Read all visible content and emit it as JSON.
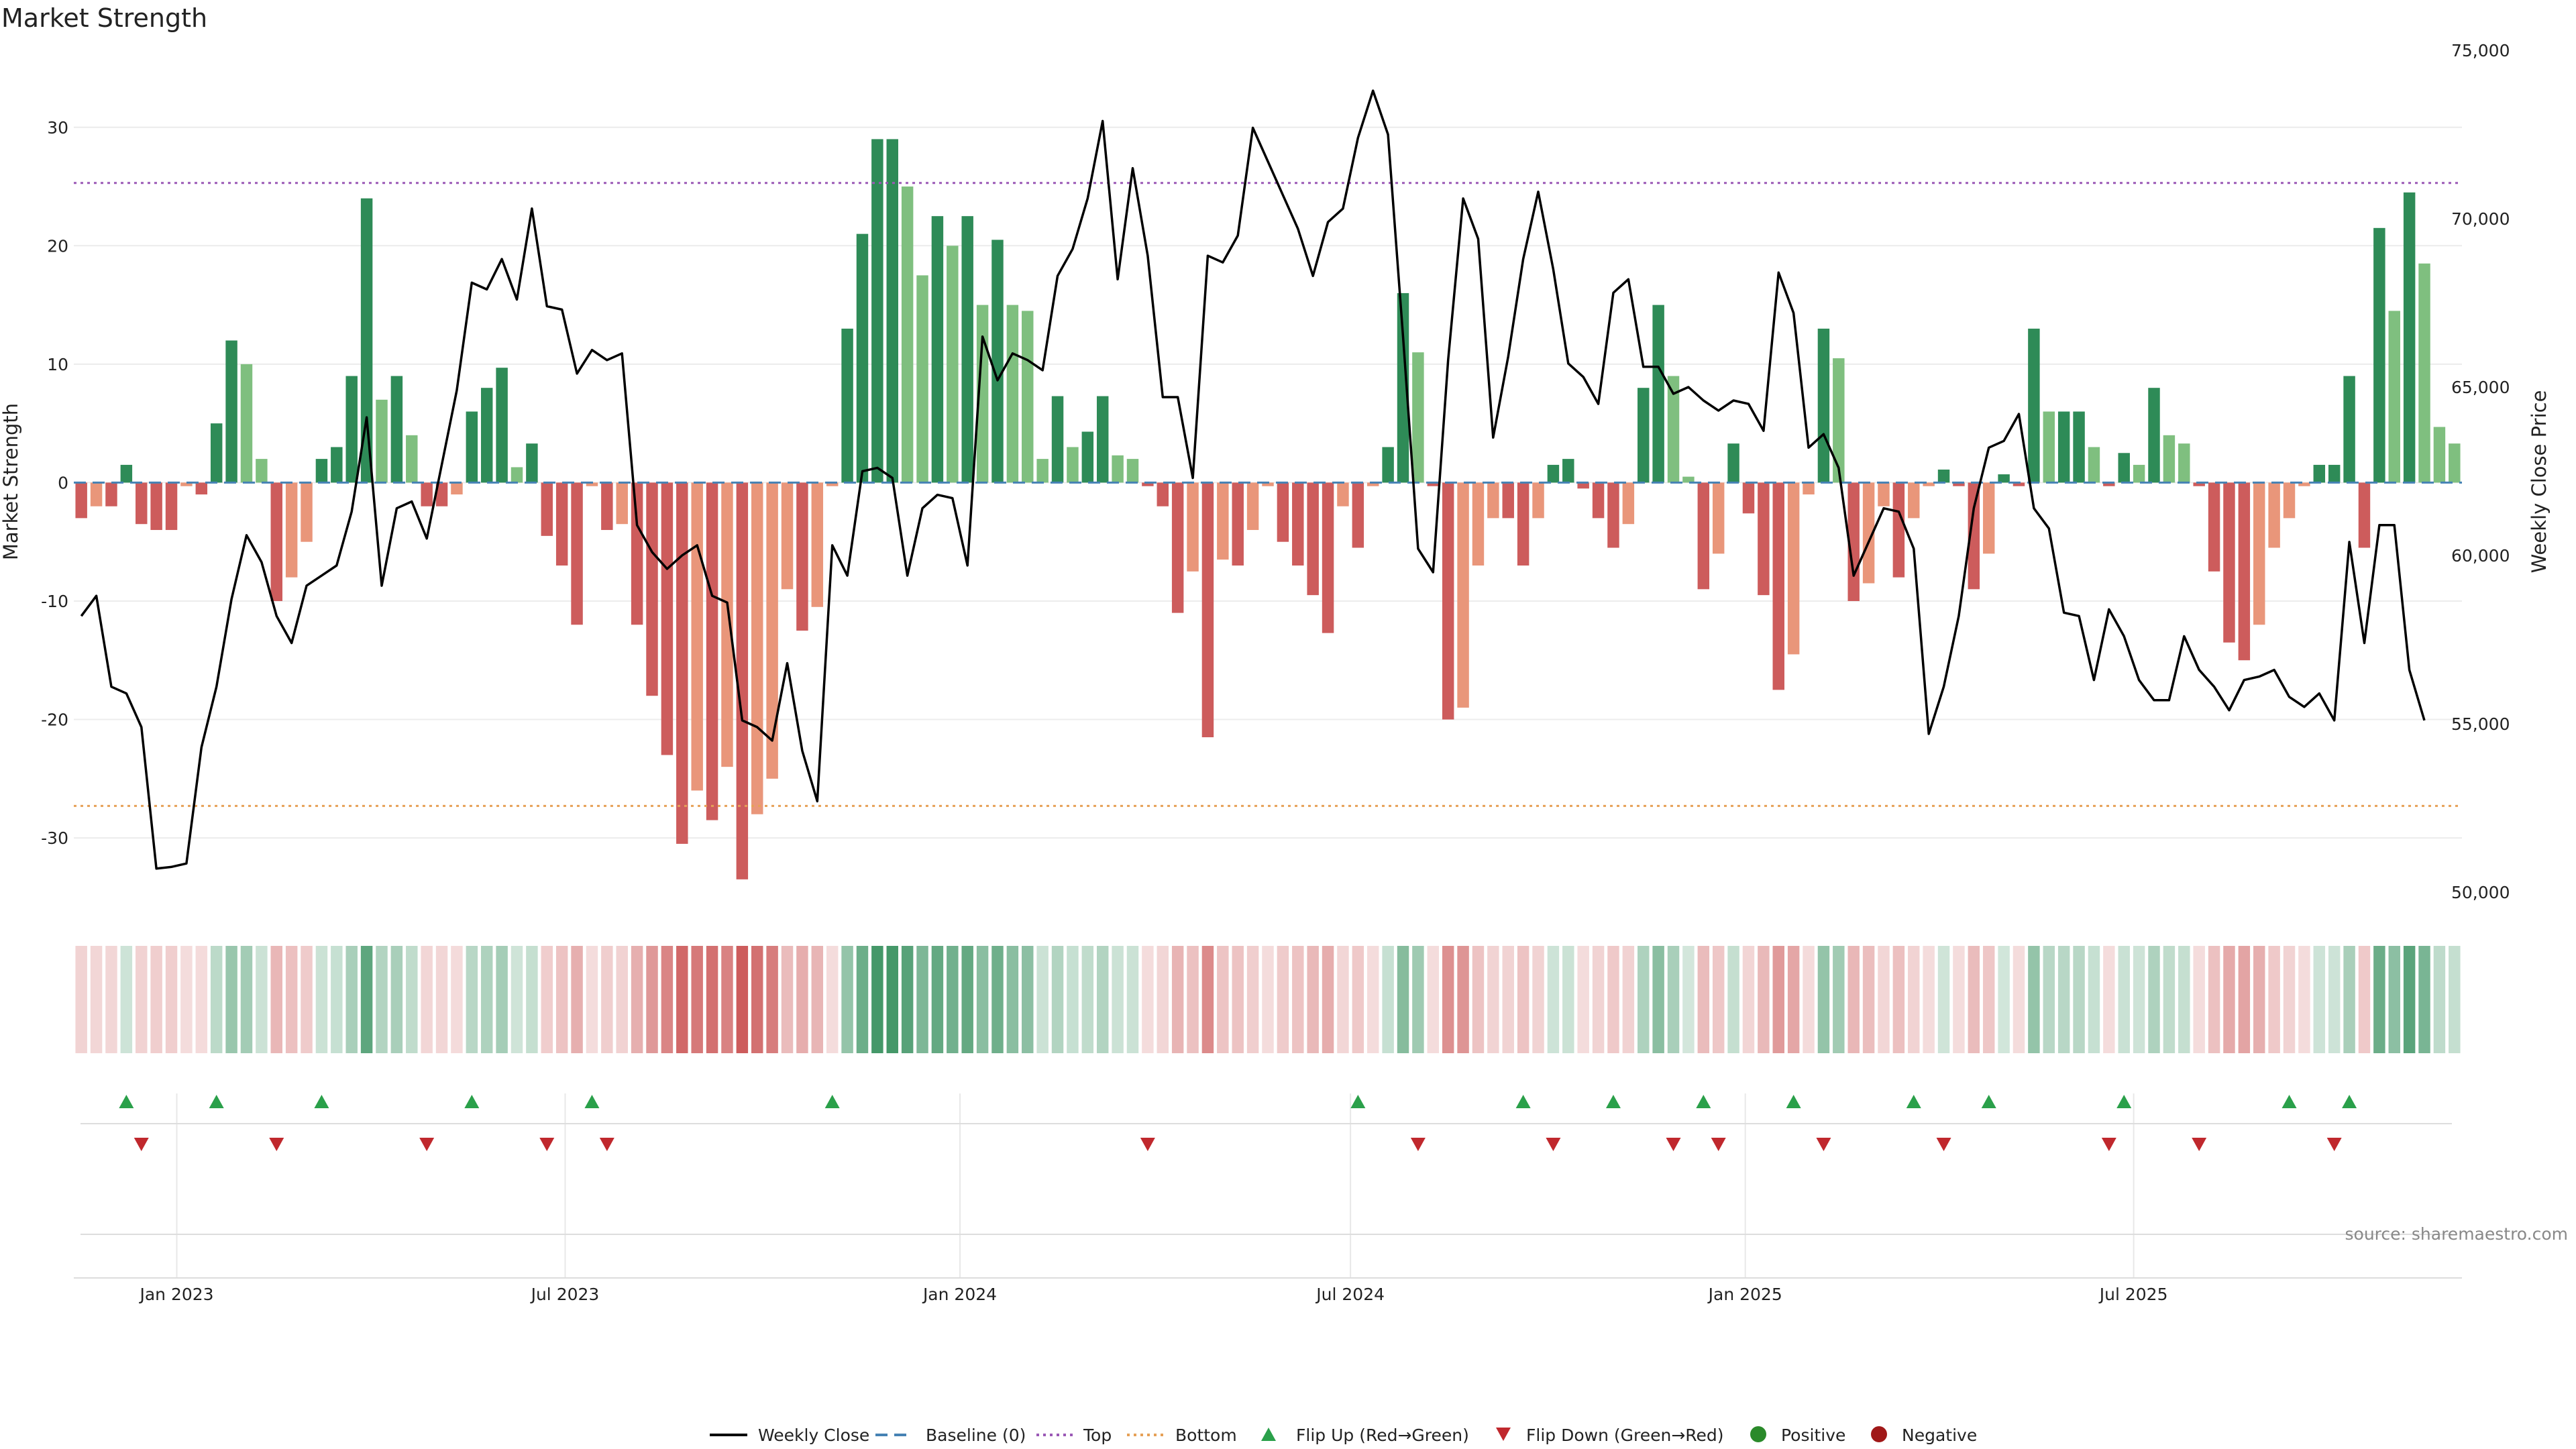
{
  "chart_data": {
    "type": "bar",
    "title": "Market Strength",
    "ylabel": "Market Strength",
    "y2label": "Weekly Close Price",
    "ylim": [
      -36,
      36.5
    ],
    "y2lim": [
      49500,
      75000
    ],
    "yticks": [
      -30,
      -20,
      -10,
      0,
      10,
      20,
      30
    ],
    "y2ticks": [
      50000,
      55000,
      60000,
      65000,
      70000,
      75000
    ],
    "y2tick_labels": [
      "50,000",
      "55,000",
      "60,000",
      "65,000",
      "70,000",
      "75,000"
    ],
    "x_start": "2022-11-14",
    "x_step_days": 7,
    "x_ticks": [
      {
        "date": "2023-01-01",
        "label": "Jan 2023"
      },
      {
        "date": "2023-07-01",
        "label": "Jul 2023"
      },
      {
        "date": "2024-01-01",
        "label": "Jan 2024"
      },
      {
        "date": "2024-07-01",
        "label": "Jul 2024"
      },
      {
        "date": "2025-01-01",
        "label": "Jan 2025"
      },
      {
        "date": "2025-07-01",
        "label": "Jul 2025"
      }
    ],
    "top_line": 25.3,
    "bottom_line": -27.3,
    "strength": [
      -3,
      -2,
      -2,
      1.5,
      -3.5,
      -4,
      -4,
      -0.3,
      -1,
      5,
      12,
      10,
      2,
      -10,
      -8,
      -5,
      2,
      3,
      9,
      24,
      7,
      9,
      4,
      -2,
      -2,
      -1,
      6,
      8,
      9.7,
      1.3,
      3.3,
      -4.5,
      -7,
      -12,
      -0.3,
      -4,
      -3.5,
      -12,
      -18,
      -23,
      -30.5,
      -26,
      -28.5,
      -24,
      -33.5,
      -28,
      -25,
      -9,
      -12.5,
      -10.5,
      -0.3,
      13,
      21,
      29,
      29,
      25,
      17.5,
      22.5,
      20,
      22.5,
      15,
      20.5,
      15,
      14.5,
      2,
      7.3,
      3,
      4.3,
      7.3,
      2.3,
      2,
      -0.3,
      -2,
      -11,
      -7.5,
      -21.5,
      -6.5,
      -7,
      -4,
      -0.3,
      -5,
      -7,
      -9.5,
      -12.7,
      -2,
      -5.5,
      -0.3,
      3,
      16,
      11,
      -0.3,
      -20,
      -19,
      -7,
      -3,
      -3,
      -7,
      -3,
      1.5,
      2,
      -0.5,
      -3,
      -5.5,
      -3.5,
      8,
      15,
      9,
      0.5,
      -9,
      -6,
      3.3,
      -2.6,
      -9.5,
      -17.5,
      -14.5,
      -1,
      13,
      10.5,
      -10,
      -8.5,
      -2,
      -8,
      -3,
      -0.3,
      1.1,
      -0.3,
      -9,
      -6,
      0.7,
      -0.3,
      13,
      6,
      6,
      6,
      3,
      -0.3,
      2.5,
      1.5,
      8,
      4,
      3.3,
      -0.3,
      -7.5,
      -13.5,
      -15,
      -12,
      -5.5,
      -3,
      -0.3,
      1.5,
      1.5,
      9,
      -5.5,
      21.5,
      14.5,
      24.5,
      18.5,
      4.7,
      3.3
    ],
    "price": [
      58200,
      58800,
      56100,
      55900,
      54900,
      50700,
      50750,
      50850,
      54300,
      56100,
      58700,
      60600,
      59800,
      58200,
      57400,
      59100,
      59400,
      59700,
      61300,
      64100,
      59100,
      61400,
      61600,
      60500,
      62700,
      64900,
      68100,
      67900,
      68800,
      67600,
      70300,
      67400,
      67300,
      65400,
      66100,
      65800,
      66000,
      60900,
      60100,
      59600,
      60000,
      60300,
      58800,
      58600,
      55100,
      54900,
      54500,
      56800,
      54200,
      52700,
      60300,
      59400,
      62500,
      62600,
      62300,
      59400,
      61400,
      61800,
      61700,
      59700,
      66500,
      65200,
      66000,
      65800,
      65500,
      68300,
      69100,
      70600,
      72900,
      68200,
      71500,
      68900,
      64700,
      64700,
      62300,
      68900,
      68700,
      69500,
      72700,
      71700,
      70700,
      69700,
      68300,
      69900,
      70300,
      72400,
      73800,
      72500,
      66500,
      60200,
      59500,
      65800,
      70600,
      69400,
      63500,
      65900,
      68800,
      70800,
      68500,
      65700,
      65300,
      64500,
      67800,
      68200,
      65600,
      65600,
      64800,
      65000,
      64600,
      64300,
      64600,
      64500,
      63700,
      68400,
      67200,
      63200,
      63600,
      62600,
      59400,
      60400,
      61400,
      61300,
      60200,
      54700,
      56100,
      58200,
      61400,
      63200,
      63400,
      64200,
      61400,
      60800,
      58300,
      58200,
      56300,
      58400,
      57600,
      56300,
      55700,
      55700,
      57600,
      56600,
      56100,
      55400,
      56300,
      56400,
      56600,
      55800,
      55500,
      55900,
      55100,
      60400,
      57400,
      60900,
      60900,
      56600,
      55100
    ],
    "flip_up_weeks": [
      3,
      9,
      16,
      26,
      34,
      50,
      85,
      96,
      102,
      108,
      114,
      122,
      127,
      136,
      147,
      151
    ],
    "flip_down_weeks": [
      4,
      13,
      23,
      31,
      35,
      71,
      89,
      98,
      106,
      109,
      116,
      124,
      135,
      141,
      150
    ],
    "legend": [
      "Weekly Close",
      "Baseline (0)",
      "Top",
      "Bottom",
      "Flip Up (Red→Green)",
      "Flip Down (Green→Red)",
      "Positive",
      "Negative"
    ],
    "colors": {
      "pos_strong": "#2e8b57",
      "pos_light": "#7fbf7f",
      "neg_strong": "#cd5c5c",
      "neg_light": "#e9967a",
      "line": "#000000",
      "baseline": "#4682b4",
      "top": "#9b59b6",
      "bottom": "#e6a157",
      "flip_up": "#2aa04a",
      "flip_down": "#c0282d",
      "positive_dot": "#2a8a2a",
      "negative_dot": "#a01818"
    }
  },
  "source_text": "source: sharemaestro.com"
}
